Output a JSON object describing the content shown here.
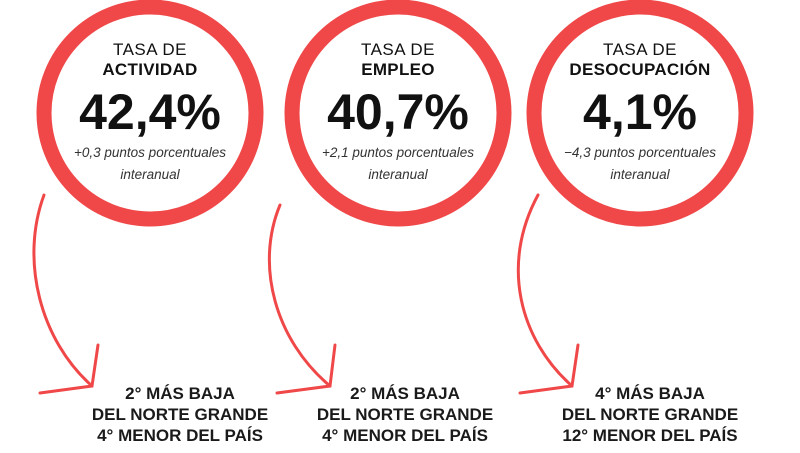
{
  "accent_color": "#f04848",
  "indicators": [
    {
      "title_line1": "TASA DE",
      "title_line2": "ACTIVIDAD",
      "value": "42,4%",
      "change": "+0,3 puntos porcentuales",
      "change_period": "interanual",
      "rank_line1": "2° MÁS BAJA",
      "rank_line2": "DEL NORTE GRANDE",
      "rank_line3": "4° MENOR DEL PAÍS"
    },
    {
      "title_line1": "TASA DE",
      "title_line2": "EMPLEO",
      "value": "40,7%",
      "change": "+2,1 puntos porcentuales",
      "change_period": "interanual",
      "rank_line1": "2° MÁS BAJA",
      "rank_line2": "DEL NORTE GRANDE",
      "rank_line3": "4° MENOR DEL PAÍS"
    },
    {
      "title_line1": "TASA DE",
      "title_line2": "DESOCUPACIÓN",
      "value": "4,1%",
      "change": "−4,3 puntos porcentuales",
      "change_period": "interanual",
      "rank_line1": "4° MÁS BAJA",
      "rank_line2": "DEL NORTE GRANDE",
      "rank_line3": "12° MENOR DEL PAÍS"
    }
  ]
}
